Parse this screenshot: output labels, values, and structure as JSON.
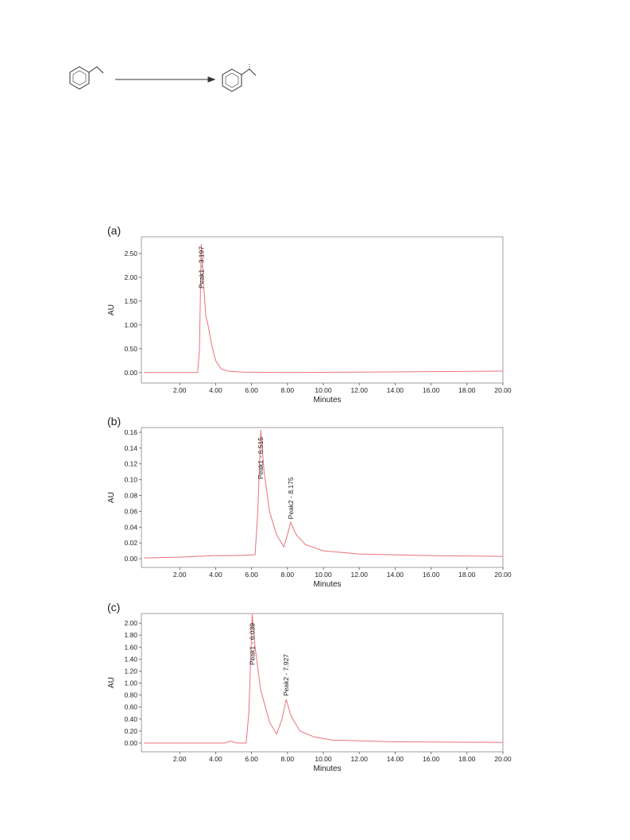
{
  "chart_data": [
    {
      "type": "line",
      "panel": "(a)",
      "xlabel": "Minutes",
      "ylabel": "AU",
      "xlim": [
        0,
        20
      ],
      "ylim": [
        -0.22,
        2.85
      ],
      "xticks": [
        {
          "value": 2,
          "label": "2.00"
        },
        {
          "value": 4,
          "label": "4.00"
        },
        {
          "value": 6,
          "label": "6.00"
        },
        {
          "value": 8,
          "label": "8.00"
        },
        {
          "value": 10,
          "label": "10.00"
        },
        {
          "value": 12,
          "label": "12.00"
        },
        {
          "value": 14,
          "label": "14.00"
        },
        {
          "value": 16,
          "label": "16.00"
        },
        {
          "value": 18,
          "label": "18.00"
        },
        {
          "value": 20,
          "label": "20.00"
        }
      ],
      "yticks": [
        {
          "value": 0,
          "label": "0.00"
        },
        {
          "value": 0.5,
          "label": "0.50"
        },
        {
          "value": 1,
          "label": "1.00"
        },
        {
          "value": 1.5,
          "label": "1.50"
        },
        {
          "value": 2,
          "label": "2.00"
        },
        {
          "value": 2.5,
          "label": "2.50"
        }
      ],
      "x": [
        0,
        3.0,
        3.1,
        3.197,
        3.3,
        3.45,
        3.6,
        3.8,
        4.0,
        4.3,
        4.7,
        5.5,
        8,
        12,
        16,
        20
      ],
      "series": [
        {
          "color": "#e8737b",
          "values": [
            0,
            0,
            0.5,
            2.7,
            2.0,
            1.2,
            0.95,
            0.55,
            0.25,
            0.08,
            0.03,
            0.01,
            0,
            0.01,
            0.02,
            0.03
          ]
        }
      ],
      "annotations": [
        {
          "text": "Peak1 - 3.197",
          "x": 3.197
        }
      ]
    },
    {
      "type": "line",
      "panel": "(b)",
      "xlabel": "Minutes",
      "ylabel": "AU",
      "xlim": [
        0,
        20
      ],
      "ylim": [
        -0.011,
        0.166
      ],
      "xticks": [
        {
          "value": 2,
          "label": "2.00"
        },
        {
          "value": 4,
          "label": "4.00"
        },
        {
          "value": 6,
          "label": "6.00"
        },
        {
          "value": 8,
          "label": "8.00"
        },
        {
          "value": 10,
          "label": "10.00"
        },
        {
          "value": 12,
          "label": "12.00"
        },
        {
          "value": 14,
          "label": "14.00"
        },
        {
          "value": 16,
          "label": "16.00"
        },
        {
          "value": 18,
          "label": "18.00"
        },
        {
          "value": 20,
          "label": "20.00"
        }
      ],
      "yticks": [
        {
          "value": 0,
          "label": "0.00"
        },
        {
          "value": 0.02,
          "label": "0.02"
        },
        {
          "value": 0.04,
          "label": "0.04"
        },
        {
          "value": 0.06,
          "label": "0.06"
        },
        {
          "value": 0.08,
          "label": "0.08"
        },
        {
          "value": 0.1,
          "label": "0.10"
        },
        {
          "value": 0.12,
          "label": "0.12"
        },
        {
          "value": 0.14,
          "label": "0.14"
        },
        {
          "value": 0.16,
          "label": "0.16"
        }
      ],
      "x": [
        0,
        2,
        4,
        5,
        6.2,
        6.35,
        6.515,
        6.7,
        7,
        7.4,
        7.8,
        8.0,
        8.175,
        8.5,
        9,
        10,
        12,
        16,
        20
      ],
      "series": [
        {
          "color": "#e8737b",
          "values": [
            0.001,
            0.002,
            0.004,
            0.004,
            0.005,
            0.06,
            0.163,
            0.11,
            0.06,
            0.03,
            0.015,
            0.03,
            0.046,
            0.03,
            0.018,
            0.01,
            0.006,
            0.004,
            0.003
          ]
        }
      ],
      "annotations": [
        {
          "text": "Peak1 - 6.515",
          "x": 6.515
        },
        {
          "text": "Peak2 - 8.175",
          "x": 8.175
        }
      ]
    },
    {
      "type": "line",
      "panel": "(c)",
      "xlabel": "Minutes",
      "ylabel": "AU",
      "xlim": [
        0,
        20
      ],
      "ylim": [
        -0.146,
        2.16
      ],
      "xticks": [
        {
          "value": 2,
          "label": "2.00"
        },
        {
          "value": 4,
          "label": "4.00"
        },
        {
          "value": 6,
          "label": "6.00"
        },
        {
          "value": 8,
          "label": "8.00"
        },
        {
          "value": 10,
          "label": "10.00"
        },
        {
          "value": 12,
          "label": "12.00"
        },
        {
          "value": 14,
          "label": "14.00"
        },
        {
          "value": 16,
          "label": "16.00"
        },
        {
          "value": 18,
          "label": "18.00"
        },
        {
          "value": 20,
          "label": "20.00"
        }
      ],
      "yticks": [
        {
          "value": 0,
          "label": "0.00"
        },
        {
          "value": 0.2,
          "label": "0.20"
        },
        {
          "value": 0.4,
          "label": "0.40"
        },
        {
          "value": 0.6,
          "label": "0.60"
        },
        {
          "value": 0.8,
          "label": "0.80"
        },
        {
          "value": 1,
          "label": "1.00"
        },
        {
          "value": 1.2,
          "label": "1.20"
        },
        {
          "value": 1.4,
          "label": "1.40"
        },
        {
          "value": 1.6,
          "label": "1.60"
        },
        {
          "value": 1.8,
          "label": "1.80"
        },
        {
          "value": 2,
          "label": "2.00"
        }
      ],
      "x": [
        0,
        4.5,
        4.8,
        5.2,
        5.7,
        5.85,
        6.039,
        6.2,
        6.5,
        7,
        7.4,
        7.7,
        7.927,
        8.2,
        8.7,
        9.5,
        10.5,
        14,
        20
      ],
      "series": [
        {
          "color": "#e8737b",
          "values": [
            0,
            0,
            0.03,
            0,
            0,
            0.5,
            2.15,
            1.6,
            0.9,
            0.35,
            0.15,
            0.4,
            0.73,
            0.45,
            0.2,
            0.1,
            0.05,
            0.02,
            0.01
          ]
        }
      ],
      "annotations": [
        {
          "text": "Peak1 - 6.039",
          "x": 6.039
        },
        {
          "text": "Peak2 - 7.927",
          "x": 7.927
        }
      ]
    }
  ]
}
